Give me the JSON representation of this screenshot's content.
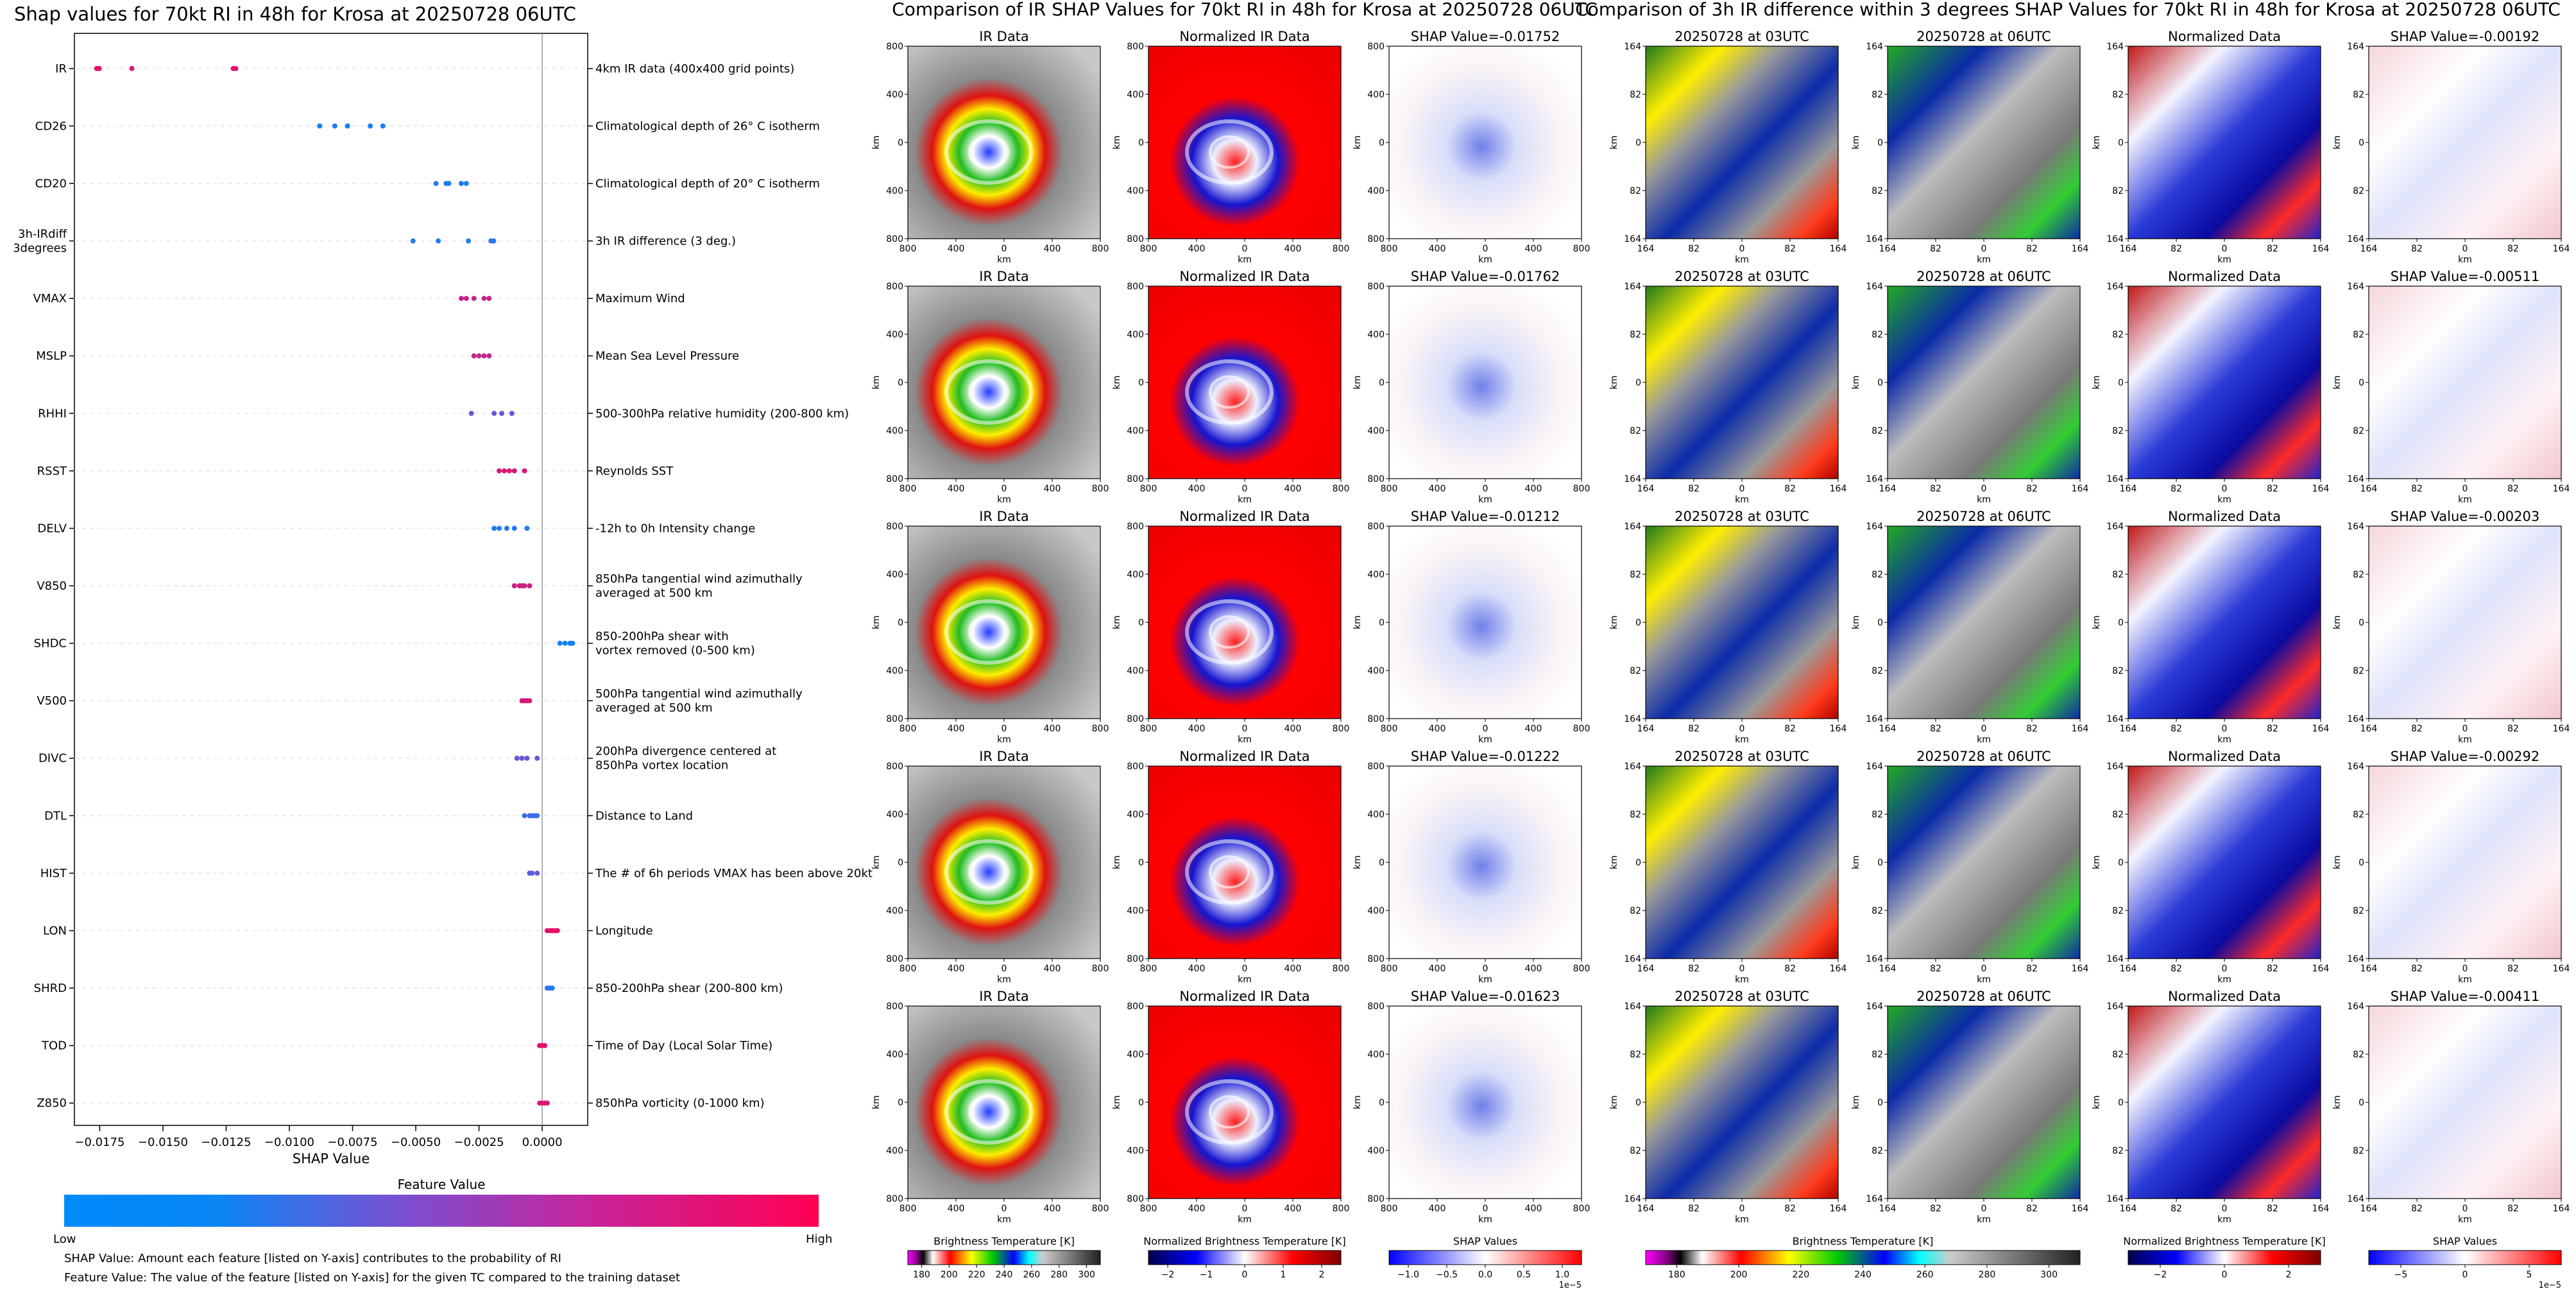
{
  "shap_panel": {
    "title": "Shap values for 70kt RI in 48h for Krosa at 20250728 06UTC",
    "xlabel": "SHAP Value",
    "colorbar_title": "Feature Value",
    "colorbar_low": "Low",
    "colorbar_high": "High",
    "note1": "SHAP Value: Amount each feature [listed on Y-axis] contributes to the probability of RI",
    "note2": "Feature Value: The value of the feature [listed on Y-axis] for the given TC compared to the training dataset"
  },
  "ir_section": {
    "title": "Comparison of IR SHAP Values for 70kt RI in 48h for Krosa at 20250728 06UTC",
    "col_titles": [
      "IR Data",
      "Normalized IR Data"
    ],
    "shap_values": [
      "SHAP Value=-0.01752",
      "SHAP Value=-0.01762",
      "SHAP Value=-0.01212",
      "SHAP Value=-0.01222",
      "SHAP Value=-0.01623"
    ],
    "ticks": [
      "800",
      "400",
      "0",
      "400",
      "800"
    ],
    "axis_unit": "km",
    "cbar_labels": [
      "Brightness Temperature [K]",
      "Normalized Brightness Temperature [K]",
      "SHAP Values"
    ],
    "cbar1_ticks": [
      "180",
      "200",
      "220",
      "240",
      "260",
      "280",
      "300"
    ],
    "cbar2_ticks": [
      "−2",
      "−1",
      "0",
      "1",
      "2"
    ],
    "cbar3_ticks": [
      "−1.0",
      "−0.5",
      "0.0",
      "0.5",
      "1.0"
    ],
    "cbar3_exp": "1e−5"
  },
  "diff_section": {
    "title": "Comparison of 3h IR difference within 3 degrees SHAP Values for 70kt RI in 48h for Krosa at 20250728 06UTC",
    "col_titles": [
      "20250728 at 03UTC",
      "20250728 at 06UTC",
      "Normalized Data"
    ],
    "shap_values": [
      "SHAP Value=-0.00192",
      "SHAP Value=-0.00511",
      "SHAP Value=-0.00203",
      "SHAP Value=-0.00292",
      "SHAP Value=-0.00411"
    ],
    "ticks": [
      "164",
      "82",
      "0",
      "82",
      "164"
    ],
    "axis_unit": "km",
    "cbar_labels": [
      "Brightness Temperature [K]",
      "Normalized Brightness Temperature [K]",
      "SHAP Values"
    ],
    "cbar1_ticks": [
      "180",
      "200",
      "220",
      "240",
      "260",
      "280",
      "300"
    ],
    "cbar2_ticks": [
      "−2",
      "0",
      "2"
    ],
    "cbar3_ticks": [
      "−5",
      "0",
      "5"
    ],
    "cbar3_exp": "1e−5"
  },
  "colors": {
    "low": "#008bfb",
    "high": "#ff0052"
  },
  "chart_data": {
    "type": "scatter",
    "title": "Shap values for 70kt RI in 48h for Krosa at 20250728 06UTC",
    "xlabel": "SHAP Value",
    "xlim": [
      -0.0185,
      0.0018
    ],
    "xticks": [
      "−0.0175",
      "−0.0150",
      "−0.0125",
      "−0.0100",
      "−0.0075",
      "−0.0050",
      "−0.0025",
      "0.0000"
    ],
    "xtick_values": [
      -0.0175,
      -0.015,
      -0.0125,
      -0.01,
      -0.0075,
      -0.005,
      -0.0025,
      0.0
    ],
    "features": [
      {
        "name": "IR",
        "description": "4km IR data (400x400 grid points)",
        "shap": [
          -0.01762,
          -0.01752,
          -0.01623,
          -0.01222,
          -0.01212
        ],
        "fv": [
          0.9,
          0.9,
          0.85,
          0.88,
          0.9
        ]
      },
      {
        "name": "CD26",
        "description": "Climatological depth of 26° C isotherm",
        "shap": [
          -0.0088,
          -0.0082,
          -0.0077,
          -0.0068,
          -0.0063
        ],
        "fv": [
          0.08,
          0.08,
          0.08,
          0.08,
          0.1
        ]
      },
      {
        "name": "CD20",
        "description": "Climatological depth of 20° C isotherm",
        "shap": [
          -0.0042,
          -0.0038,
          -0.0037,
          -0.0032,
          -0.003
        ],
        "fv": [
          0.15,
          0.12,
          0.12,
          0.15,
          0.12
        ]
      },
      {
        "name": "3h-IRdiff\n3degrees",
        "description": "3h IR difference (3 deg.)",
        "shap": [
          -0.00511,
          -0.00411,
          -0.00292,
          -0.00203,
          -0.00192
        ],
        "fv": [
          0.15,
          0.15,
          0.15,
          0.2,
          0.15
        ]
      },
      {
        "name": "VMAX",
        "description": "Maximum Wind",
        "shap": [
          -0.0032,
          -0.003,
          -0.0027,
          -0.0023,
          -0.0021
        ],
        "fv": [
          0.75,
          0.8,
          0.75,
          0.75,
          0.8
        ]
      },
      {
        "name": "MSLP",
        "description": "Mean Sea Level Pressure",
        "shap": [
          -0.0027,
          -0.0025,
          -0.0023,
          -0.0021
        ],
        "fv": [
          0.8,
          0.75,
          0.8,
          0.75
        ]
      },
      {
        "name": "RHHI",
        "description": "500-300hPa relative humidity (200-800 km)",
        "shap": [
          -0.0028,
          -0.0019,
          -0.0016,
          -0.0012
        ],
        "fv": [
          0.4,
          0.45,
          0.4,
          0.45
        ]
      },
      {
        "name": "RSST",
        "description": "Reynolds SST",
        "shap": [
          -0.0017,
          -0.0015,
          -0.0013,
          -0.0011,
          -0.0007
        ],
        "fv": [
          0.85,
          0.85,
          0.85,
          0.85,
          0.85
        ]
      },
      {
        "name": "DELV",
        "description": "-12h to 0h Intensity change",
        "shap": [
          -0.0019,
          -0.0017,
          -0.0014,
          -0.0011,
          -0.0006
        ],
        "fv": [
          0.15,
          0.15,
          0.15,
          0.15,
          0.15
        ]
      },
      {
        "name": "V850",
        "description": "850hPa tangential wind azimuthally\naveraged at 500 km",
        "shap": [
          -0.0011,
          -0.0009,
          -0.0008,
          -0.0007,
          -0.0005
        ],
        "fv": [
          0.8,
          0.8,
          0.8,
          0.8,
          0.8
        ]
      },
      {
        "name": "SHDC",
        "description": "850-200hPa shear with\nvortex removed (0-500 km)",
        "shap": [
          0.0007,
          0.0009,
          0.0011,
          0.0012
        ],
        "fv": [
          0.08,
          0.08,
          0.1,
          0.08
        ]
      },
      {
        "name": "V500",
        "description": "500hPa tangential wind azimuthally\naveraged at 500 km",
        "shap": [
          -0.0008,
          -0.0007,
          -0.0006,
          -0.0005
        ],
        "fv": [
          0.85,
          0.85,
          0.85,
          0.85
        ]
      },
      {
        "name": "DIVC",
        "description": "200hPa divergence centered at\n850hPa vortex location",
        "shap": [
          -0.001,
          -0.0008,
          -0.0006,
          -0.0002
        ],
        "fv": [
          0.45,
          0.45,
          0.45,
          0.4
        ]
      },
      {
        "name": "DTL",
        "description": "Distance to Land",
        "shap": [
          -0.0007,
          -0.0005,
          -0.0004,
          -0.0003,
          -0.0002
        ],
        "fv": [
          0.25,
          0.25,
          0.25,
          0.25,
          0.25
        ]
      },
      {
        "name": "HIST",
        "description": "The # of 6h periods VMAX has been above 20kt",
        "shap": [
          -0.0005,
          -0.0004,
          -0.0002
        ],
        "fv": [
          0.35,
          0.35,
          0.4
        ]
      },
      {
        "name": "LON",
        "description": "Longitude",
        "shap": [
          0.0002,
          0.0003,
          0.0004,
          0.0005,
          0.0006
        ],
        "fv": [
          0.9,
          0.9,
          0.9,
          0.9,
          0.9
        ]
      },
      {
        "name": "SHRD",
        "description": "850-200hPa shear (200-800 km)",
        "shap": [
          0.0002,
          0.0003,
          0.0004
        ],
        "fv": [
          0.15,
          0.15,
          0.15
        ]
      },
      {
        "name": "TOD",
        "description": "Time of Day (Local Solar Time)",
        "shap": [
          -0.0001,
          0.0,
          0.0001
        ],
        "fv": [
          0.9,
          0.9,
          0.9
        ]
      },
      {
        "name": "Z850",
        "description": "850hPa vorticity (0-1000 km)",
        "shap": [
          -0.0001,
          0.0,
          0.0001,
          0.0002
        ],
        "fv": [
          0.85,
          0.85,
          0.85,
          0.85
        ]
      }
    ]
  }
}
